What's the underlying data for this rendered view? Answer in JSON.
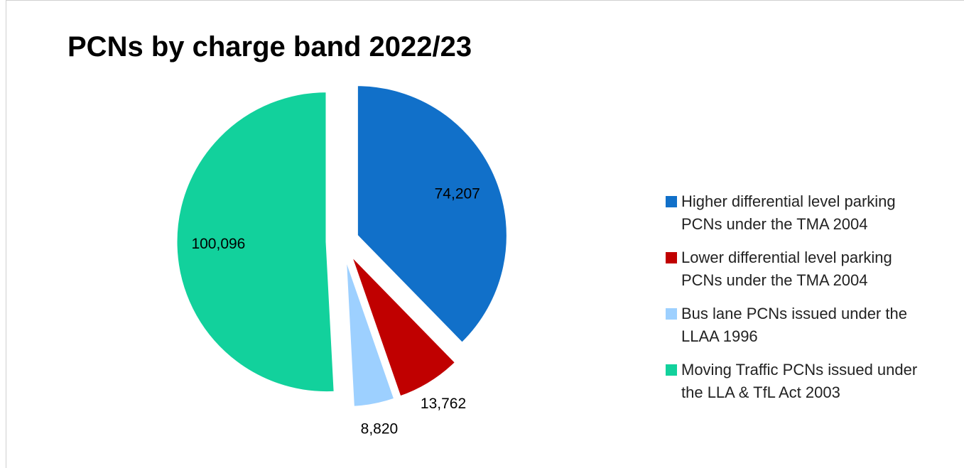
{
  "chart_data": {
    "type": "pie",
    "title": "PCNs by charge band 2022/23",
    "categories": [
      "Higher differential level parking PCNs under the TMA 2004",
      "Lower differential level parking PCNs under the TMA 2004",
      "Bus lane PCNs issued under the LLAA 1996",
      "Moving Traffic PCNs issued under the LLA & TfL Act 2003"
    ],
    "values": [
      74207,
      13762,
      8820,
      100096
    ],
    "value_labels": [
      "74,207",
      "13,762",
      "8,820",
      "100,096"
    ],
    "colors": [
      "#1170c9",
      "#c00000",
      "#9dd0ff",
      "#12d19c"
    ],
    "legend": "right"
  }
}
